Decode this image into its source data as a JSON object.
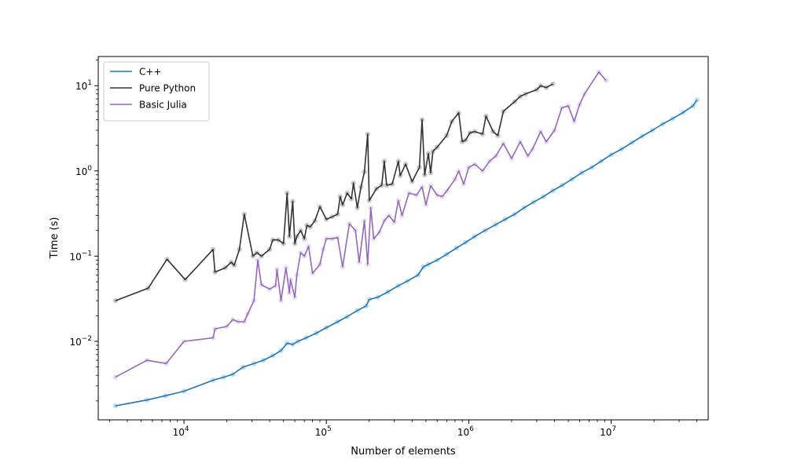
{
  "chart_data": {
    "type": "line",
    "xlabel": "Number of elements",
    "ylabel": "Time (s)",
    "xscale": "log",
    "yscale": "log",
    "xlim": [
      2500,
      48000000
    ],
    "ylim": [
      0.0012,
      22
    ],
    "x_ticks": [
      {
        "value": 10000,
        "base": "10",
        "exp": "4"
      },
      {
        "value": 100000,
        "base": "10",
        "exp": "5"
      },
      {
        "value": 1000000,
        "base": "10",
        "exp": "6"
      },
      {
        "value": 10000000,
        "base": "10",
        "exp": "7"
      }
    ],
    "y_ticks": [
      {
        "value": 0.01,
        "base": "10",
        "exp": "−2"
      },
      {
        "value": 0.1,
        "base": "10",
        "exp": "−1"
      },
      {
        "value": 1,
        "base": "10",
        "exp": "0"
      },
      {
        "value": 10,
        "base": "10",
        "exp": "1"
      }
    ],
    "grid": false,
    "legend_position": "top-left",
    "series": [
      {
        "name": "C++",
        "color": "#1f77b4",
        "marker_color": "#8fc6ea",
        "points": [
          [
            3300,
            0.00175
          ],
          [
            5500,
            0.00205
          ],
          [
            7400,
            0.0023
          ],
          [
            10000,
            0.0026
          ],
          [
            16000,
            0.0035
          ],
          [
            19000,
            0.0038
          ],
          [
            22000,
            0.0041
          ],
          [
            26000,
            0.005
          ],
          [
            31000,
            0.0055
          ],
          [
            36000,
            0.006
          ],
          [
            42000,
            0.0068
          ],
          [
            48000,
            0.0078
          ],
          [
            53000,
            0.0095
          ],
          [
            58000,
            0.0092
          ],
          [
            63000,
            0.01
          ],
          [
            72000,
            0.011
          ],
          [
            85000,
            0.0125
          ],
          [
            100000,
            0.0145
          ],
          [
            120000,
            0.017
          ],
          [
            140000,
            0.0195
          ],
          [
            165000,
            0.023
          ],
          [
            190000,
            0.026
          ],
          [
            200000,
            0.031
          ],
          [
            230000,
            0.033
          ],
          [
            270000,
            0.038
          ],
          [
            320000,
            0.045
          ],
          [
            370000,
            0.051
          ],
          [
            440000,
            0.06
          ],
          [
            480000,
            0.075
          ],
          [
            520000,
            0.08
          ],
          [
            600000,
            0.09
          ],
          [
            700000,
            0.105
          ],
          [
            820000,
            0.125
          ],
          [
            950000,
            0.145
          ],
          [
            1100000,
            0.17
          ],
          [
            1300000,
            0.2
          ],
          [
            1550000,
            0.235
          ],
          [
            1800000,
            0.27
          ],
          [
            2100000,
            0.31
          ],
          [
            2450000,
            0.37
          ],
          [
            2850000,
            0.43
          ],
          [
            3350000,
            0.5
          ],
          [
            3900000,
            0.59
          ],
          [
            4550000,
            0.68
          ],
          [
            5300000,
            0.8
          ],
          [
            6200000,
            0.95
          ],
          [
            7300000,
            1.1
          ],
          [
            8500000,
            1.3
          ],
          [
            10000000,
            1.55
          ],
          [
            11800000,
            1.8
          ],
          [
            14000000,
            2.15
          ],
          [
            16500000,
            2.55
          ],
          [
            19500000,
            3.0
          ],
          [
            23000000,
            3.55
          ],
          [
            27000000,
            4.1
          ],
          [
            32000000,
            4.85
          ],
          [
            37500000,
            5.8
          ],
          [
            40000000,
            6.8
          ]
        ]
      },
      {
        "name": "Pure Python",
        "color": "#333333",
        "marker_color": "#a6a6a6",
        "points": [
          [
            3300,
            0.03
          ],
          [
            5600,
            0.042
          ],
          [
            7600,
            0.092
          ],
          [
            10200,
            0.053
          ],
          [
            16000,
            0.12
          ],
          [
            16500,
            0.065
          ],
          [
            19500,
            0.073
          ],
          [
            21500,
            0.085
          ],
          [
            22500,
            0.078
          ],
          [
            24500,
            0.12
          ],
          [
            26500,
            0.31
          ],
          [
            30500,
            0.1
          ],
          [
            32500,
            0.11
          ],
          [
            35000,
            0.1
          ],
          [
            40000,
            0.12
          ],
          [
            42000,
            0.155
          ],
          [
            46000,
            0.155
          ],
          [
            50000,
            0.14
          ],
          [
            53000,
            0.55
          ],
          [
            55000,
            0.17
          ],
          [
            58000,
            0.44
          ],
          [
            60000,
            0.14
          ],
          [
            62000,
            0.17
          ],
          [
            66000,
            0.2
          ],
          [
            70000,
            0.16
          ],
          [
            73000,
            0.23
          ],
          [
            77000,
            0.22
          ],
          [
            83000,
            0.26
          ],
          [
            90000,
            0.38
          ],
          [
            100000,
            0.27
          ],
          [
            110000,
            0.29
          ],
          [
            120000,
            0.31
          ],
          [
            125000,
            0.5
          ],
          [
            130000,
            0.4
          ],
          [
            140000,
            0.55
          ],
          [
            150000,
            0.47
          ],
          [
            155000,
            0.72
          ],
          [
            165000,
            0.37
          ],
          [
            175000,
            0.65
          ],
          [
            185000,
            0.97
          ],
          [
            195000,
            2.7
          ],
          [
            200000,
            0.45
          ],
          [
            225000,
            0.62
          ],
          [
            245000,
            0.68
          ],
          [
            255000,
            1.3
          ],
          [
            265000,
            0.68
          ],
          [
            290000,
            0.7
          ],
          [
            320000,
            1.3
          ],
          [
            330000,
            0.88
          ],
          [
            360000,
            1.2
          ],
          [
            400000,
            0.75
          ],
          [
            450000,
            1.1
          ],
          [
            470000,
            4.0
          ],
          [
            490000,
            0.9
          ],
          [
            520000,
            1.6
          ],
          [
            540000,
            0.95
          ],
          [
            560000,
            1.7
          ],
          [
            600000,
            1.9
          ],
          [
            700000,
            2.6
          ],
          [
            760000,
            3.8
          ],
          [
            850000,
            4.8
          ],
          [
            900000,
            2.2
          ],
          [
            950000,
            2.3
          ],
          [
            1020000,
            2.8
          ],
          [
            1100000,
            2.9
          ],
          [
            1250000,
            2.7
          ],
          [
            1320000,
            4.4
          ],
          [
            1480000,
            2.9
          ],
          [
            1600000,
            2.6
          ],
          [
            1750000,
            5.0
          ],
          [
            2100000,
            6.5
          ],
          [
            2300000,
            7.5
          ],
          [
            2500000,
            8.0
          ],
          [
            3000000,
            9.0
          ],
          [
            3200000,
            10.0
          ],
          [
            3500000,
            9.5
          ],
          [
            3900000,
            10.5
          ]
        ]
      },
      {
        "name": "Basic Julia",
        "color": "#9467bd",
        "marker_color": "#d7c6ea",
        "points": [
          [
            3300,
            0.0038
          ],
          [
            5500,
            0.006
          ],
          [
            7500,
            0.0055
          ],
          [
            10000,
            0.01
          ],
          [
            16000,
            0.011
          ],
          [
            16500,
            0.014
          ],
          [
            20000,
            0.015
          ],
          [
            22000,
            0.018
          ],
          [
            24000,
            0.017
          ],
          [
            26500,
            0.017
          ],
          [
            28000,
            0.021
          ],
          [
            31000,
            0.03
          ],
          [
            33000,
            0.09
          ],
          [
            35000,
            0.046
          ],
          [
            40000,
            0.041
          ],
          [
            44000,
            0.045
          ],
          [
            45000,
            0.07
          ],
          [
            48000,
            0.03
          ],
          [
            52000,
            0.073
          ],
          [
            55000,
            0.037
          ],
          [
            56000,
            0.053
          ],
          [
            60000,
            0.033
          ],
          [
            62000,
            0.06
          ],
          [
            66000,
            0.11
          ],
          [
            70000,
            0.1
          ],
          [
            75000,
            0.13
          ],
          [
            80000,
            0.063
          ],
          [
            90000,
            0.08
          ],
          [
            95000,
            0.12
          ],
          [
            100000,
            0.16
          ],
          [
            110000,
            0.16
          ],
          [
            120000,
            0.165
          ],
          [
            130000,
            0.075
          ],
          [
            145000,
            0.24
          ],
          [
            160000,
            0.2
          ],
          [
            170000,
            0.085
          ],
          [
            185000,
            0.26
          ],
          [
            195000,
            0.08
          ],
          [
            205000,
            0.37
          ],
          [
            215000,
            0.16
          ],
          [
            235000,
            0.19
          ],
          [
            255000,
            0.26
          ],
          [
            275000,
            0.3
          ],
          [
            300000,
            0.25
          ],
          [
            320000,
            0.45
          ],
          [
            340000,
            0.3
          ],
          [
            380000,
            0.55
          ],
          [
            430000,
            0.52
          ],
          [
            470000,
            0.65
          ],
          [
            500000,
            0.4
          ],
          [
            540000,
            0.67
          ],
          [
            600000,
            0.52
          ],
          [
            650000,
            0.5
          ],
          [
            700000,
            0.58
          ],
          [
            800000,
            0.8
          ],
          [
            850000,
            1.0
          ],
          [
            920000,
            0.7
          ],
          [
            1000000,
            1.1
          ],
          [
            1100000,
            1.2
          ],
          [
            1250000,
            1.0
          ],
          [
            1400000,
            1.3
          ],
          [
            1550000,
            1.5
          ],
          [
            1750000,
            2.1
          ],
          [
            2000000,
            1.4
          ],
          [
            2300000,
            2.2
          ],
          [
            2600000,
            1.5
          ],
          [
            2800000,
            1.8
          ],
          [
            3200000,
            2.9
          ],
          [
            3500000,
            2.2
          ],
          [
            4000000,
            3.0
          ],
          [
            4500000,
            5.5
          ],
          [
            5000000,
            5.8
          ],
          [
            5500000,
            3.8
          ],
          [
            6000000,
            6.0
          ],
          [
            6500000,
            8.0
          ],
          [
            8200000,
            14.5
          ],
          [
            9200000,
            11.5
          ]
        ]
      }
    ]
  }
}
